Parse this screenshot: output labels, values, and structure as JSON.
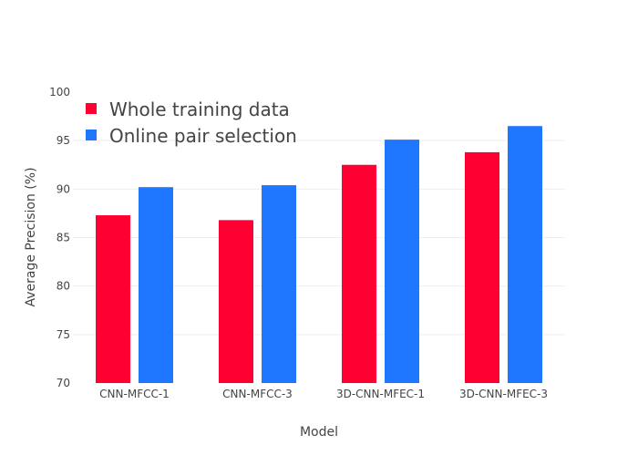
{
  "chart_data": {
    "type": "bar",
    "title": "",
    "xlabel": "Model",
    "ylabel": "Average Precision (%)",
    "categories": [
      "CNN-MFCC-1",
      "CNN-MFCC-3",
      "3D-CNN-MFEC-1",
      "3D-CNN-MFEC-3"
    ],
    "series": [
      {
        "name": "Whole training data",
        "color": "#ff0033",
        "values": [
          87.3,
          86.8,
          92.5,
          93.8
        ]
      },
      {
        "name": "Online pair selection",
        "color": "#1f77ff",
        "values": [
          90.2,
          90.4,
          95.1,
          96.5
        ]
      }
    ],
    "ylim": [
      70,
      100
    ],
    "yticks": [
      70,
      75,
      80,
      85,
      90,
      95,
      100
    ],
    "grid": true,
    "legend_position": "top-left"
  }
}
